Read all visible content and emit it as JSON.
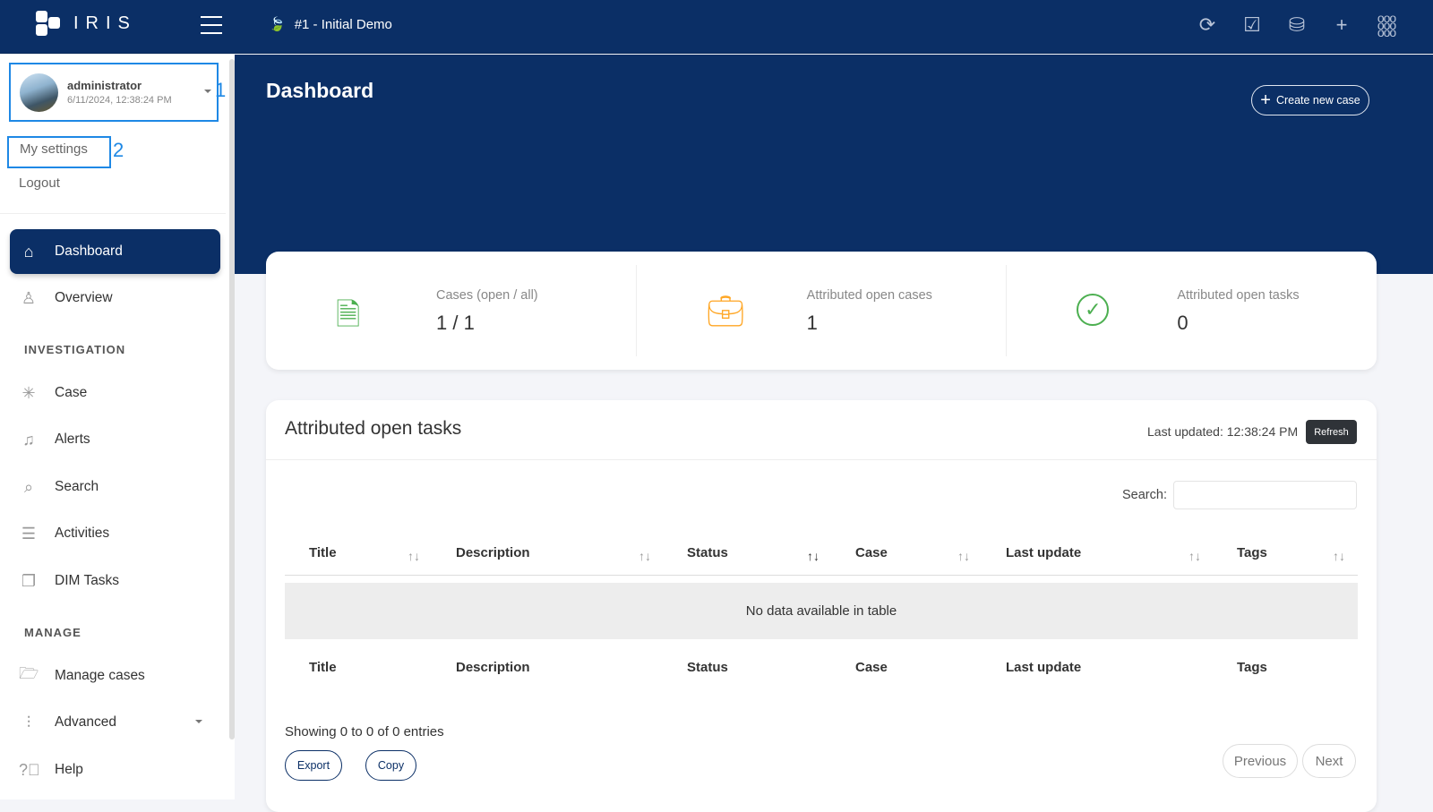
{
  "app": {
    "name": "IRIS",
    "case_title": "#1 - Initial Demo"
  },
  "topbar": {
    "icons": [
      "refresh-icon",
      "checkbox-icon",
      "database-icon",
      "plus-icon",
      "apps-grid-icon"
    ]
  },
  "user": {
    "name": "administrator",
    "datetime": "6/11/2024, 12:38:24 PM",
    "annotation": "1"
  },
  "user_menu": {
    "settings": "My settings",
    "settings_annotation": "2",
    "logout": "Logout"
  },
  "sidebar": {
    "items": [
      {
        "label": "Dashboard",
        "icon": "home-icon",
        "active": true
      },
      {
        "label": "Overview",
        "icon": "person-icon"
      }
    ],
    "investigation_label": "INVESTIGATION",
    "investigation": [
      {
        "label": "Case",
        "icon": "network-icon"
      },
      {
        "label": "Alerts",
        "icon": "bell-icon"
      },
      {
        "label": "Search",
        "icon": "search-icon"
      },
      {
        "label": "Activities",
        "icon": "list-icon"
      },
      {
        "label": "DIM Tasks",
        "icon": "windows-icon"
      }
    ],
    "manage_label": "MANAGE",
    "manage": [
      {
        "label": "Manage cases",
        "icon": "folder-icon"
      },
      {
        "label": "Advanced",
        "icon": "sliders-icon"
      },
      {
        "label": "Help",
        "icon": "help-icon"
      }
    ]
  },
  "header": {
    "title": "Dashboard",
    "create_label": "Create new case"
  },
  "stats": [
    {
      "label": "Cases (open / all)",
      "value": "1 / 1",
      "icon": "document-icon",
      "color": "#4caf50"
    },
    {
      "label": "Attributed open cases",
      "value": "1",
      "icon": "briefcase-icon",
      "color": "#ffa726"
    },
    {
      "label": "Attributed open tasks",
      "value": "0",
      "icon": "check-circle-icon",
      "color": "#4caf50"
    }
  ],
  "tasks": {
    "title": "Attributed open tasks",
    "last_updated": "Last updated: 12:38:24 PM",
    "refresh": "Refresh",
    "search_label": "Search:",
    "search_value": "",
    "columns": [
      "Title",
      "Description",
      "Status",
      "Case",
      "Last update",
      "Tags"
    ],
    "empty": "No data available in table",
    "showing": "Showing 0 to 0 of 0 entries",
    "export": "Export",
    "copy": "Copy",
    "previous": "Previous",
    "next": "Next"
  }
}
